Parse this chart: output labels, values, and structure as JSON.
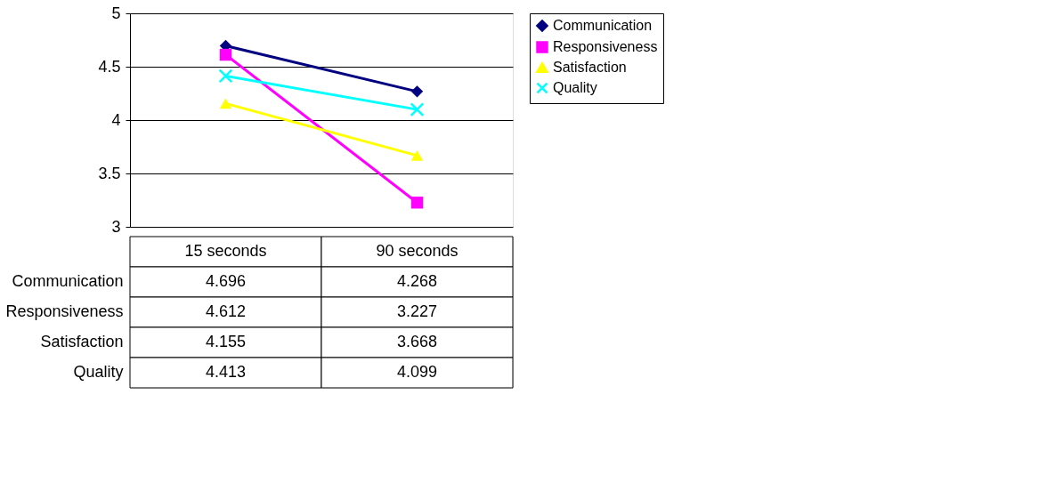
{
  "chart_data": {
    "type": "line",
    "categories": [
      "15 seconds",
      "90 seconds"
    ],
    "series": [
      {
        "name": "Communication",
        "color": "#000080",
        "marker": "diamond",
        "values": [
          4.696,
          4.268
        ]
      },
      {
        "name": "Responsiveness",
        "color": "#ff00ff",
        "marker": "square",
        "values": [
          4.612,
          3.227
        ]
      },
      {
        "name": "Satisfaction",
        "color": "#ffff00",
        "marker": "triangle",
        "values": [
          4.155,
          3.668
        ]
      },
      {
        "name": "Quality",
        "color": "#00ffff",
        "marker": "cross",
        "values": [
          4.413,
          4.099
        ]
      }
    ],
    "ylim": [
      3,
      5
    ],
    "yticks": [
      3,
      3.5,
      4,
      4.5,
      5
    ],
    "grid": "y",
    "legend": "right",
    "data_labels": true,
    "line_style": "solid"
  }
}
